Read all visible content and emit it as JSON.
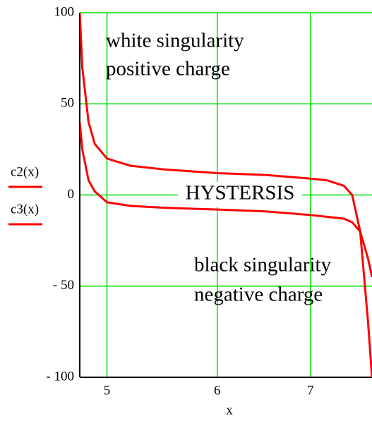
{
  "chart_data": {
    "type": "line",
    "x_label": "x",
    "x": [
      4.78,
      4.8,
      4.85,
      4.9,
      5,
      5.2,
      5.5,
      6,
      6.5,
      7,
      7.2,
      7.4,
      7.5,
      7.6,
      7.7,
      7.75
    ],
    "series": [
      {
        "name": "c2(x)",
        "color": "#ff0000",
        "values": [
          100,
          70,
          40,
          28,
          20,
          16,
          14,
          12,
          11,
          9,
          8,
          5,
          0,
          -20,
          -70,
          -100
        ]
      },
      {
        "name": "c3(x)",
        "color": "#ff0000",
        "values": [
          40,
          25,
          8,
          2,
          -4,
          -6,
          -7,
          -8,
          -9,
          -11,
          -12,
          -13,
          -15,
          -20,
          -35,
          -45
        ]
      }
    ],
    "xlim": [
      4.78,
      7.75
    ],
    "xticks": [
      5,
      6,
      7
    ],
    "xscale": "log",
    "ylim": [
      -100,
      100
    ],
    "yticks": [
      {
        "value": -100,
        "label": "- 100"
      },
      {
        "value": -50,
        "label": "- 50"
      },
      0,
      50,
      100
    ],
    "grid": true,
    "grid_color": "#00dd00",
    "annotations": [
      "white singularity",
      "positive charge",
      "HYSTERSIS",
      "black singularity",
      "negative charge"
    ]
  }
}
